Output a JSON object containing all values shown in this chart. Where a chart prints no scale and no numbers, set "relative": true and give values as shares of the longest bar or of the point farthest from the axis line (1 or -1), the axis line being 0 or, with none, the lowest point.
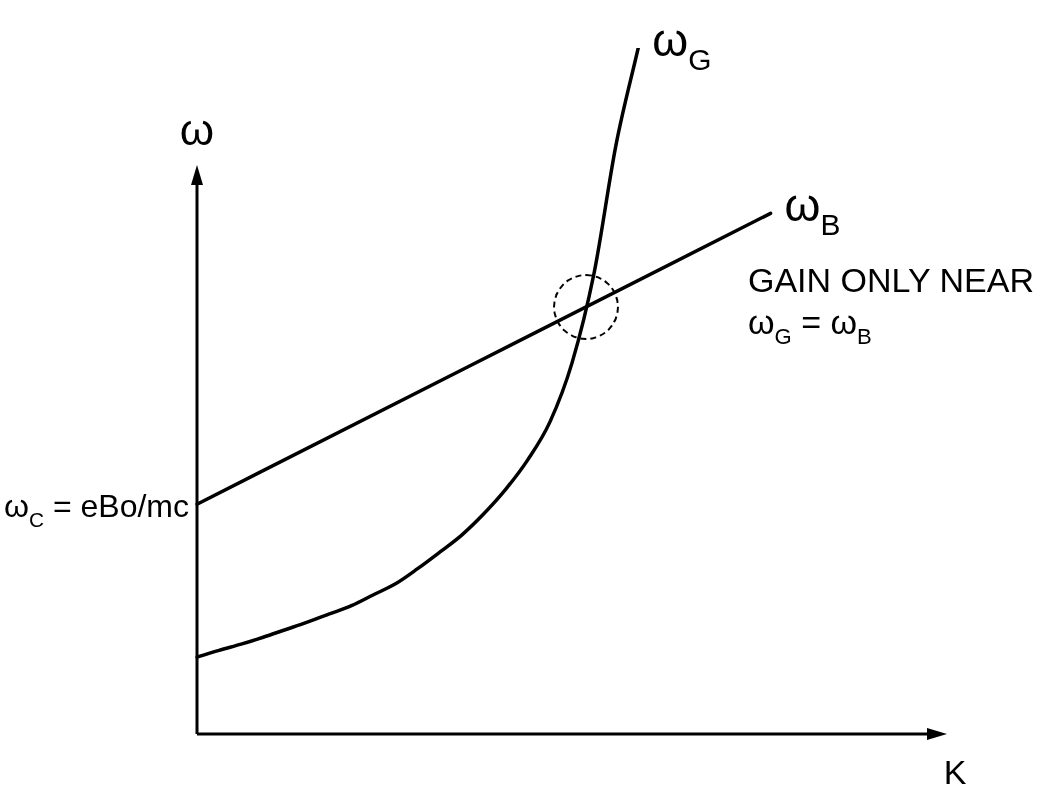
{
  "chart_data": {
    "type": "line",
    "relative": true,
    "xlabel": "K",
    "ylabel": "ω",
    "marker": "none",
    "line_style": "solid",
    "legend": false,
    "categories": [
      null,
      null,
      null,
      null,
      null,
      null,
      null,
      null,
      null,
      null,
      null,
      null,
      null,
      null,
      null,
      null,
      null,
      null,
      null,
      null,
      null,
      null,
      null,
      null,
      null,
      null,
      null,
      null,
      null,
      null,
      null,
      null,
      null,
      null
    ],
    "series": [
      {
        "name": "ω$_{G}$",
        "color": "#000000",
        "values": [
          0.112,
          0.122,
          0.131,
          0.141,
          0.152,
          0.163,
          0.175,
          0.187,
          0.203,
          0.219,
          0.241,
          0.265,
          0.29,
          0.321,
          0.357,
          0.4,
          0.455,
          0.541,
          0.672,
          0.86,
          1,
          null,
          null,
          null,
          null,
          null,
          null,
          null,
          null,
          null,
          null,
          null,
          null,
          null
        ]
      },
      {
        "name": "ω$_{B}$",
        "color": "#000000",
        "values": [
          0.335,
          null,
          null,
          null,
          null,
          null,
          null,
          null,
          null,
          null,
          null,
          null,
          null,
          null,
          null,
          null,
          null,
          null,
          null,
          null,
          null,
          null,
          null,
          null,
          null,
          null,
          0.759,
          null,
          null,
          null,
          null,
          null,
          null,
          null
        ]
      }
    ],
    "annotations": [
      "ω$_{C}$ = eBo/mc",
      "GAIN ONLY NEAR\nω$_{G}$ = ω$_{B}$"
    ]
  }
}
